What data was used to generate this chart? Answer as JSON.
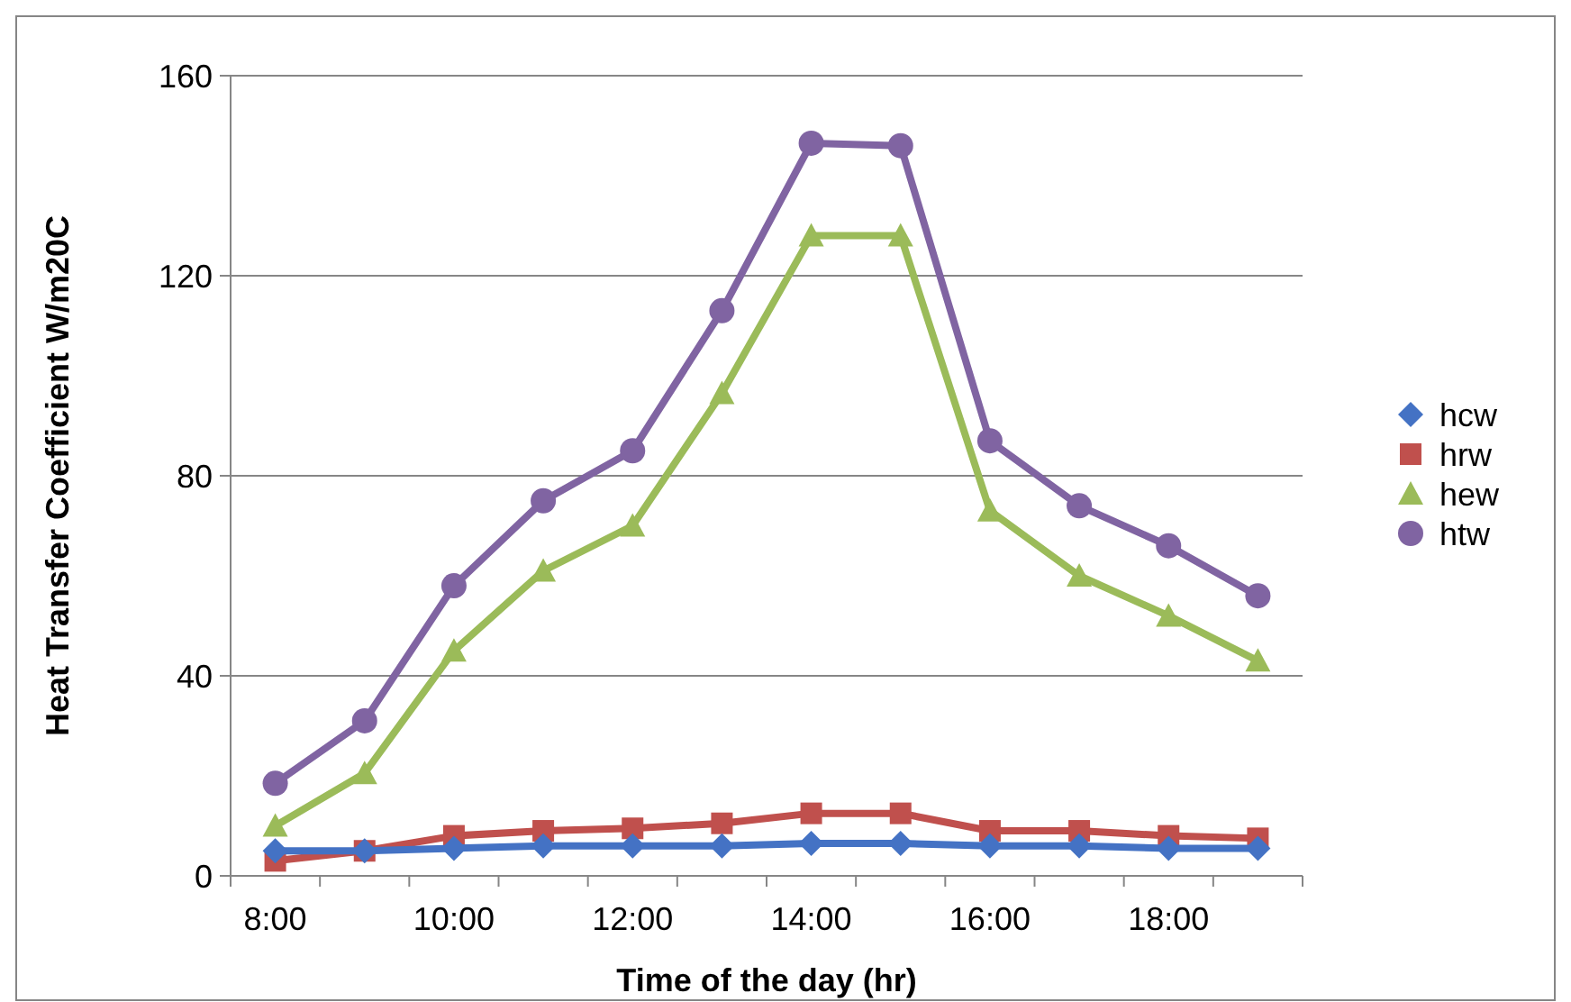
{
  "chart_data": {
    "type": "line",
    "xlabel": "Time of the day (hr)",
    "ylabel": "Heat Transfer Coefficient W/m20C",
    "categories": [
      "8:00",
      null,
      "10:00",
      null,
      "12:00",
      null,
      "14:00",
      null,
      "16:00",
      null,
      "18:00",
      null
    ],
    "series": [
      {
        "name": "hcw",
        "color": "#4472c4",
        "marker": "diamond",
        "values": [
          5,
          5,
          5.5,
          6,
          6,
          6,
          6.5,
          6.5,
          6,
          6,
          5.5,
          5.5
        ]
      },
      {
        "name": "hrw",
        "color": "#c0504d",
        "marker": "square",
        "values": [
          3,
          5,
          8,
          9,
          9.5,
          10.5,
          12.5,
          12.5,
          9,
          9,
          8,
          7.5
        ]
      },
      {
        "name": "hew",
        "color": "#9bbb59",
        "marker": "triangle",
        "values": [
          10,
          20.5,
          45,
          61,
          70,
          96.5,
          128,
          128,
          73,
          60,
          52,
          43
        ]
      },
      {
        "name": "htw",
        "color": "#8064a2",
        "marker": "circle",
        "values": [
          18.5,
          31,
          58,
          75,
          85,
          113,
          146.5,
          146,
          87,
          74,
          66,
          56
        ]
      }
    ],
    "ylim": [
      0,
      160
    ],
    "yticks": [
      0,
      40,
      80,
      120,
      160
    ],
    "grid": "y",
    "legend": "right",
    "line_style": "solid"
  }
}
